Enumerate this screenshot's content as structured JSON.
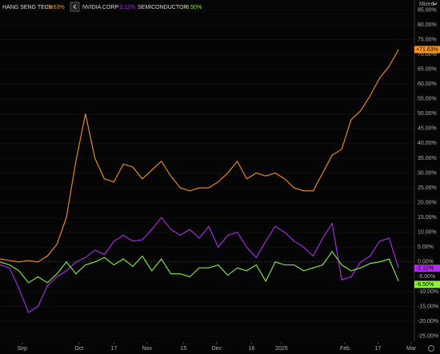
{
  "chart_data": {
    "type": "line",
    "axis_mode": "Mixed",
    "x": [
      0,
      3,
      6,
      9,
      12,
      15,
      18,
      21,
      24,
      27,
      30,
      33,
      36,
      39,
      42,
      45,
      48,
      51,
      54,
      57,
      60,
      63,
      66,
      69,
      72,
      75,
      78,
      81,
      84,
      87,
      90,
      93,
      96,
      99,
      102,
      105,
      108,
      111,
      114,
      117,
      120,
      123,
      126
    ],
    "xlim": [
      0,
      131
    ],
    "xticks": [
      {
        "value": 7,
        "label": "Sep"
      },
      {
        "value": 25,
        "label": "Oct"
      },
      {
        "value": 36,
        "label": "17"
      },
      {
        "value": 46.5,
        "label": "Nov"
      },
      {
        "value": 58,
        "label": "15"
      },
      {
        "value": 68.5,
        "label": "Dec"
      },
      {
        "value": 79.5,
        "label": "16"
      },
      {
        "value": 89,
        "label": "2025"
      },
      {
        "value": 109,
        "label": "Feb"
      },
      {
        "value": 119.5,
        "label": "17"
      },
      {
        "value": 130,
        "label": "Mar"
      }
    ],
    "ylim": [
      -27,
      87
    ],
    "yticks": [
      {
        "value": 85,
        "label": "85.00%"
      },
      {
        "value": 80,
        "label": "80.00%"
      },
      {
        "value": 75,
        "label": "75.00%"
      },
      {
        "value": 70,
        "label": "70.00%"
      },
      {
        "value": 65,
        "label": "65.00%"
      },
      {
        "value": 60,
        "label": "60.00%"
      },
      {
        "value": 55,
        "label": "55.00%"
      },
      {
        "value": 50,
        "label": "50.00%"
      },
      {
        "value": 45,
        "label": "45.00%"
      },
      {
        "value": 40,
        "label": "40.00%"
      },
      {
        "value": 35,
        "label": "35.00%"
      },
      {
        "value": 30,
        "label": "30.00%"
      },
      {
        "value": 25,
        "label": "25.00%"
      },
      {
        "value": 20,
        "label": "20.00%"
      },
      {
        "value": 15,
        "label": "15.00%"
      },
      {
        "value": 10,
        "label": "10.00%"
      },
      {
        "value": 5,
        "label": "5.00%"
      },
      {
        "value": 0,
        "label": "0.00%"
      },
      {
        "value": -5,
        "label": "-5.00%"
      },
      {
        "value": -10,
        "label": "-10.00%"
      },
      {
        "value": -15,
        "label": "-15.00%"
      },
      {
        "value": -20,
        "label": "-20.00%"
      },
      {
        "value": -25,
        "label": "-25.00%"
      }
    ],
    "series": [
      {
        "name": "HANG SENG TECH",
        "color": "#f7931e",
        "header_label": "71.63%",
        "tag_label": "+71.63%",
        "values": [
          1,
          0.5,
          0,
          0.5,
          0,
          2,
          6,
          15,
          34,
          50,
          35,
          28,
          27,
          33,
          32,
          28,
          31,
          34,
          29,
          25,
          24,
          25,
          25,
          27,
          30,
          34,
          28,
          30,
          29,
          30,
          28,
          25,
          24,
          24,
          30,
          36,
          38,
          48,
          51,
          56,
          62,
          66,
          71.63
        ]
      },
      {
        "name": "NVIDIA CORP",
        "color": "#b12cf0",
        "header_label": "-2.12%",
        "tag_label": "-2.12%",
        "values": [
          -1,
          -2,
          -9,
          -17,
          -15,
          -8,
          -5,
          -3,
          0,
          1.5,
          4,
          2.5,
          7,
          9,
          7,
          7.5,
          11,
          15,
          11,
          9,
          11,
          8,
          12,
          5,
          9,
          10,
          5,
          1.5,
          7,
          12,
          10,
          7,
          5,
          2,
          8,
          13,
          -6,
          -5,
          0,
          2,
          7,
          8,
          -2.12
        ]
      },
      {
        "name": "SEMICONDUCTOR",
        "color": "#8ef03c",
        "header_label": "-6.50%",
        "tag_label": "-6.50%",
        "values": [
          0,
          -1,
          -3,
          -7,
          -5,
          -7,
          -4,
          0,
          -4,
          -1,
          0,
          1.5,
          -1,
          1,
          -1.5,
          2,
          -3,
          1,
          -4,
          -4,
          -5,
          -2,
          -2,
          -1,
          -4.5,
          -2,
          -3,
          -1,
          -6.5,
          0,
          -1,
          -1,
          -3,
          -2,
          -1,
          3.5,
          -1,
          -3,
          -2,
          -0.5,
          0,
          1,
          -6.5
        ]
      }
    ]
  }
}
